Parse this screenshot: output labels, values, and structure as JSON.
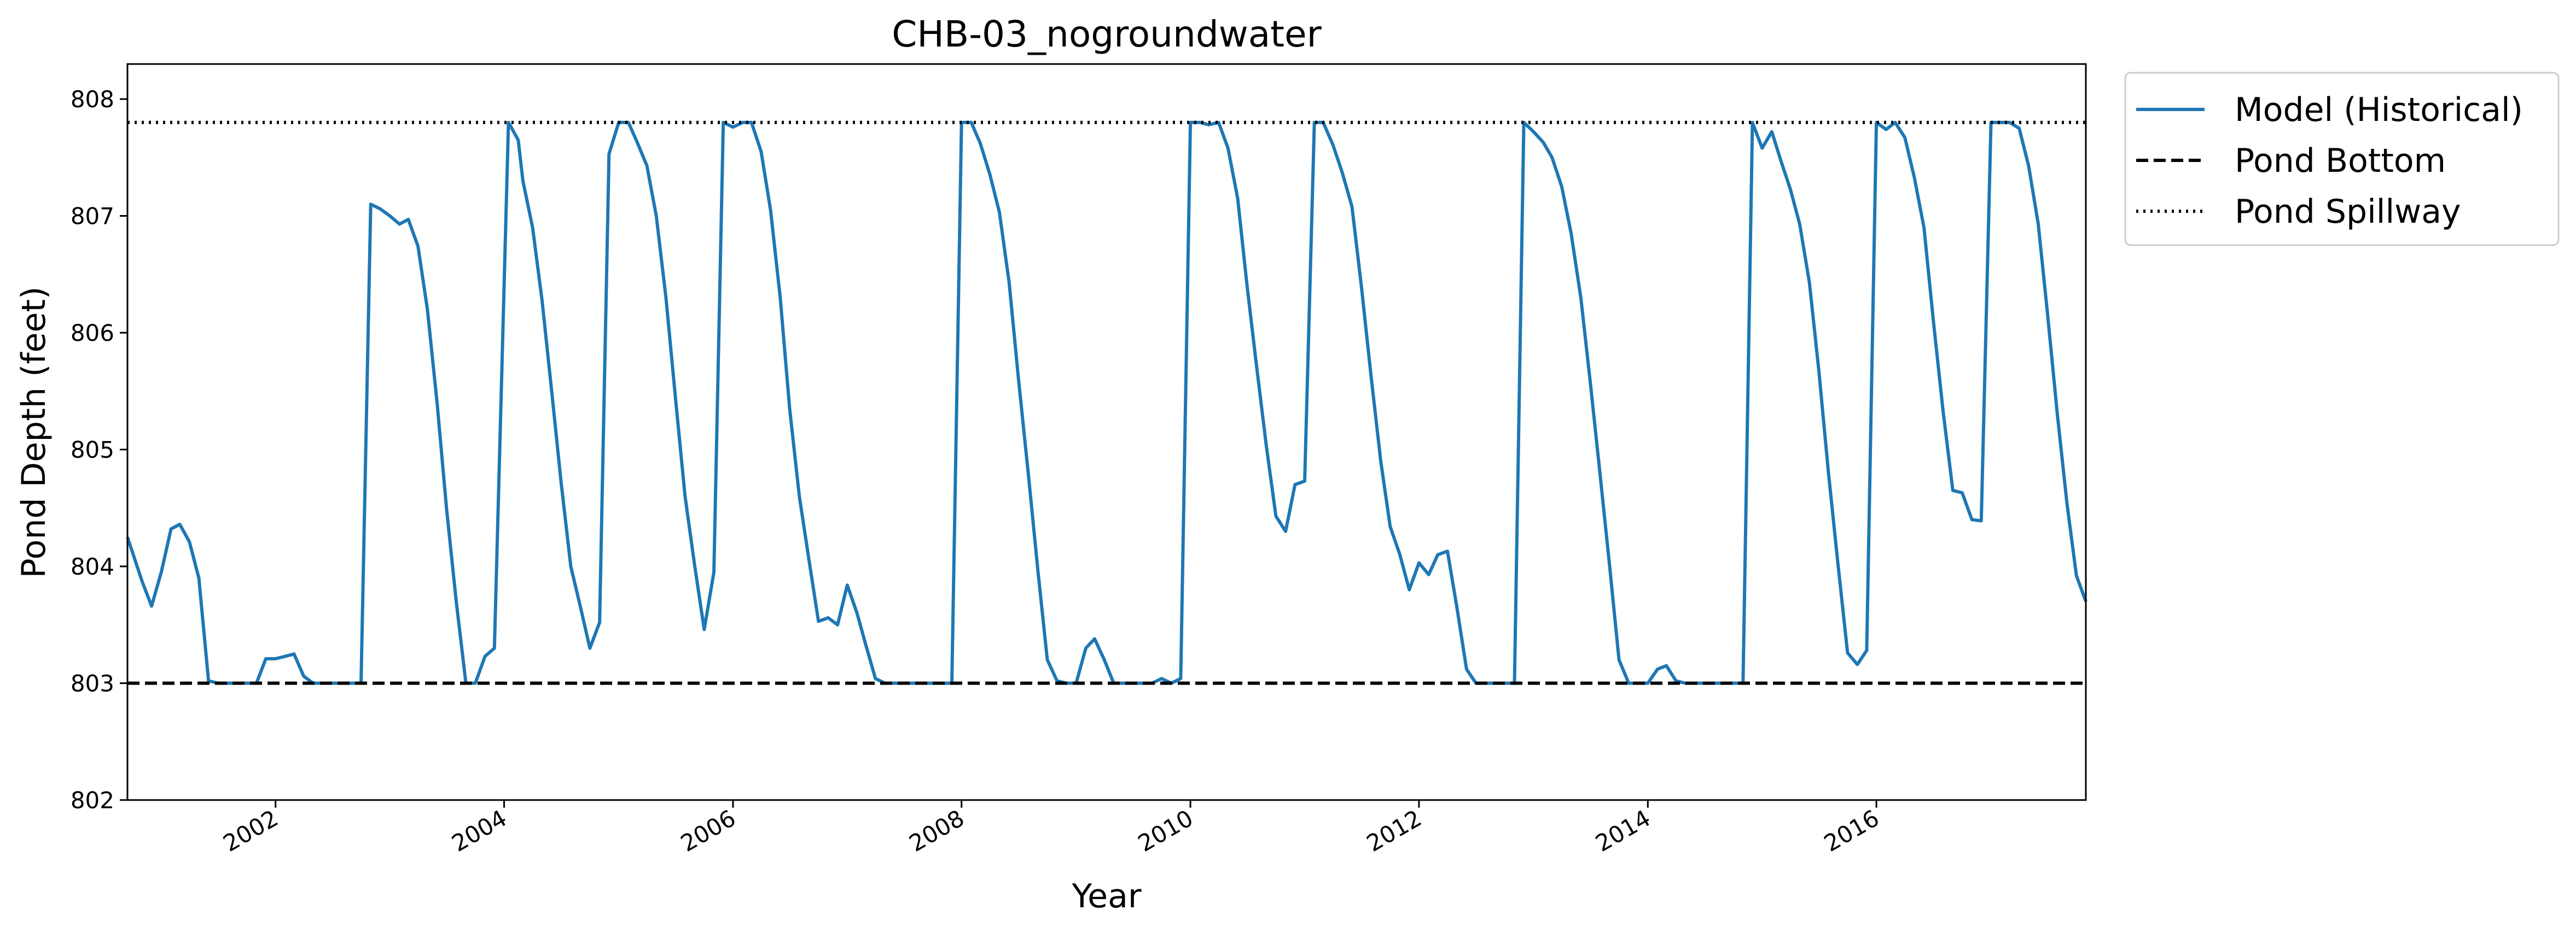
{
  "chart_data": {
    "type": "line",
    "title": "CHB-03_nogroundwater",
    "xlabel": "Year",
    "ylabel": "Pond Depth (feet)",
    "xlim": [
      "2000-09-15",
      "2017-10-31"
    ],
    "ylim": [
      802,
      808.3
    ],
    "xticks": [
      "2002",
      "2004",
      "2006",
      "2008",
      "2010",
      "2012",
      "2014",
      "2016"
    ],
    "yticks": [
      "802",
      "803",
      "804",
      "805",
      "806",
      "807",
      "808"
    ],
    "legend_position": "outside-top-right",
    "series": [
      {
        "name": "Model (Historical)",
        "color": "#1f77b4",
        "style": "solid",
        "x": [
          "2000-09-15",
          "2000-11-01",
          "2000-12-01",
          "2001-01-01",
          "2001-02-01",
          "2001-03-01",
          "2001-04-01",
          "2001-05-01",
          "2001-06-01",
          "2001-07-01",
          "2001-08-01",
          "2001-09-01",
          "2001-10-01",
          "2001-11-01",
          "2001-12-01",
          "2002-01-01",
          "2002-02-01",
          "2002-03-01",
          "2002-04-01",
          "2002-05-01",
          "2002-06-01",
          "2002-07-01",
          "2002-08-01",
          "2002-09-01",
          "2002-10-01",
          "2002-11-01",
          "2002-12-01",
          "2003-01-01",
          "2003-02-01",
          "2003-03-01",
          "2003-04-01",
          "2003-05-01",
          "2003-06-01",
          "2003-07-01",
          "2003-08-01",
          "2003-09-01",
          "2003-10-01",
          "2003-11-01",
          "2003-12-01",
          "2004-01-15",
          "2004-02-15",
          "2004-03-01",
          "2004-04-01",
          "2004-05-01",
          "2004-06-01",
          "2004-07-01",
          "2004-08-01",
          "2004-09-01",
          "2004-10-01",
          "2004-11-01",
          "2004-12-01",
          "2005-01-01",
          "2005-02-01",
          "2005-03-01",
          "2005-04-01",
          "2005-05-01",
          "2005-06-01",
          "2005-07-01",
          "2005-08-01",
          "2005-09-01",
          "2005-10-01",
          "2005-11-01",
          "2005-12-01",
          "2006-01-01",
          "2006-02-01",
          "2006-03-01",
          "2006-04-01",
          "2006-05-01",
          "2006-06-01",
          "2006-07-01",
          "2006-08-01",
          "2006-09-01",
          "2006-10-01",
          "2006-11-01",
          "2006-12-01",
          "2007-01-01",
          "2007-02-01",
          "2007-03-01",
          "2007-04-01",
          "2007-05-01",
          "2007-06-01",
          "2007-07-01",
          "2007-08-01",
          "2007-09-01",
          "2007-10-01",
          "2007-11-01",
          "2007-12-01",
          "2008-01-01",
          "2008-02-01",
          "2008-03-01",
          "2008-04-01",
          "2008-05-01",
          "2008-06-01",
          "2008-07-01",
          "2008-08-01",
          "2008-09-01",
          "2008-10-01",
          "2008-11-01",
          "2008-12-01",
          "2009-01-01",
          "2009-02-01",
          "2009-03-01",
          "2009-04-01",
          "2009-05-01",
          "2009-06-01",
          "2009-07-01",
          "2009-08-01",
          "2009-09-01",
          "2009-10-01",
          "2009-11-01",
          "2009-12-01",
          "2010-01-01",
          "2010-02-01",
          "2010-03-01",
          "2010-04-01",
          "2010-05-01",
          "2010-06-01",
          "2010-07-01",
          "2010-08-01",
          "2010-09-01",
          "2010-10-01",
          "2010-11-01",
          "2010-12-01",
          "2011-01-01",
          "2011-02-01",
          "2011-03-01",
          "2011-04-01",
          "2011-05-01",
          "2011-06-01",
          "2011-07-01",
          "2011-08-01",
          "2011-09-01",
          "2011-10-01",
          "2011-11-01",
          "2011-12-01",
          "2012-01-01",
          "2012-02-01",
          "2012-03-01",
          "2012-04-01",
          "2012-05-01",
          "2012-06-01",
          "2012-07-01",
          "2012-08-01",
          "2012-09-01",
          "2012-10-01",
          "2012-11-01",
          "2012-12-01",
          "2013-01-01",
          "2013-02-01",
          "2013-03-01",
          "2013-04-01",
          "2013-05-01",
          "2013-06-01",
          "2013-07-01",
          "2013-08-01",
          "2013-09-01",
          "2013-10-01",
          "2013-11-01",
          "2013-12-01",
          "2014-01-01",
          "2014-02-01",
          "2014-03-01",
          "2014-04-01",
          "2014-05-01",
          "2014-06-01",
          "2014-07-01",
          "2014-08-01",
          "2014-09-01",
          "2014-10-01",
          "2014-11-01",
          "2014-12-01",
          "2015-01-01",
          "2015-02-01",
          "2015-03-01",
          "2015-04-01",
          "2015-05-01",
          "2015-06-01",
          "2015-07-01",
          "2015-08-01",
          "2015-09-01",
          "2015-10-01",
          "2015-11-01",
          "2015-12-01",
          "2016-01-01",
          "2016-02-01",
          "2016-03-01",
          "2016-04-01",
          "2016-05-01",
          "2016-06-01",
          "2016-07-01",
          "2016-08-01",
          "2016-09-01",
          "2016-10-01",
          "2016-11-01",
          "2016-12-01",
          "2017-01-01",
          "2017-02-01",
          "2017-03-01",
          "2017-04-01",
          "2017-05-01",
          "2017-06-01",
          "2017-07-01",
          "2017-08-01",
          "2017-09-01",
          "2017-10-01",
          "2017-10-31"
        ],
        "y": [
          804.25,
          803.87,
          803.66,
          803.95,
          804.32,
          804.36,
          804.21,
          803.9,
          803.02,
          803.0,
          803.0,
          803.0,
          803.0,
          803.0,
          803.21,
          803.21,
          803.23,
          803.25,
          803.06,
          803.0,
          803.0,
          803.0,
          803.0,
          803.0,
          803.0,
          807.1,
          807.06,
          807.0,
          806.93,
          806.97,
          806.74,
          806.2,
          805.4,
          804.5,
          803.7,
          803.0,
          803.0,
          803.23,
          803.3,
          807.8,
          807.65,
          807.3,
          806.9,
          806.28,
          805.5,
          804.72,
          804.0,
          803.65,
          803.3,
          803.52,
          807.53,
          807.8,
          807.8,
          807.63,
          807.43,
          807.0,
          806.3,
          805.45,
          804.6,
          804.0,
          803.46,
          803.95,
          807.8,
          807.76,
          807.8,
          807.8,
          807.55,
          807.05,
          806.3,
          805.35,
          804.6,
          804.05,
          803.53,
          803.56,
          803.5,
          803.84,
          803.6,
          803.33,
          803.04,
          803.0,
          803.0,
          803.0,
          803.0,
          803.0,
          803.0,
          803.0,
          803.0,
          807.8,
          807.8,
          807.62,
          807.35,
          807.03,
          806.43,
          805.6,
          804.8,
          803.96,
          803.2,
          803.02,
          803.0,
          803.0,
          803.3,
          803.38,
          803.2,
          803.0,
          803.0,
          803.0,
          803.0,
          803.0,
          803.04,
          803.0,
          803.04,
          807.8,
          807.8,
          807.78,
          807.8,
          807.58,
          807.15,
          806.4,
          805.7,
          805.02,
          804.43,
          804.3,
          804.7,
          804.73,
          807.8,
          807.8,
          807.61,
          807.37,
          807.08,
          806.4,
          805.63,
          804.9,
          804.34,
          804.1,
          803.8,
          804.03,
          803.93,
          804.1,
          804.13,
          803.65,
          803.12,
          803.0,
          803.0,
          803.0,
          803.0,
          803.0,
          807.8,
          807.72,
          807.63,
          807.5,
          807.25,
          806.85,
          806.3,
          805.58,
          804.8,
          804.0,
          803.2,
          803.0,
          803.0,
          803.0,
          803.12,
          803.15,
          803.02,
          803.0,
          803.0,
          803.0,
          803.0,
          803.0,
          803.0,
          803.0,
          807.8,
          807.58,
          807.72,
          807.48,
          807.23,
          806.93,
          806.43,
          805.68,
          804.8,
          804.0,
          803.26,
          803.16,
          803.28,
          807.8,
          807.74,
          807.8,
          807.67,
          807.33,
          806.9,
          806.1,
          805.33,
          804.65,
          804.63,
          804.4,
          804.39,
          807.8,
          807.8,
          807.8,
          807.75,
          807.43,
          806.93,
          806.15,
          805.3,
          804.53,
          803.92,
          803.7
        ]
      },
      {
        "name": "Pond Bottom",
        "color": "#000000",
        "style": "dashed",
        "value": 803
      },
      {
        "name": "Pond Spillway",
        "color": "#000000",
        "style": "dotted",
        "value": 807.8
      }
    ]
  }
}
